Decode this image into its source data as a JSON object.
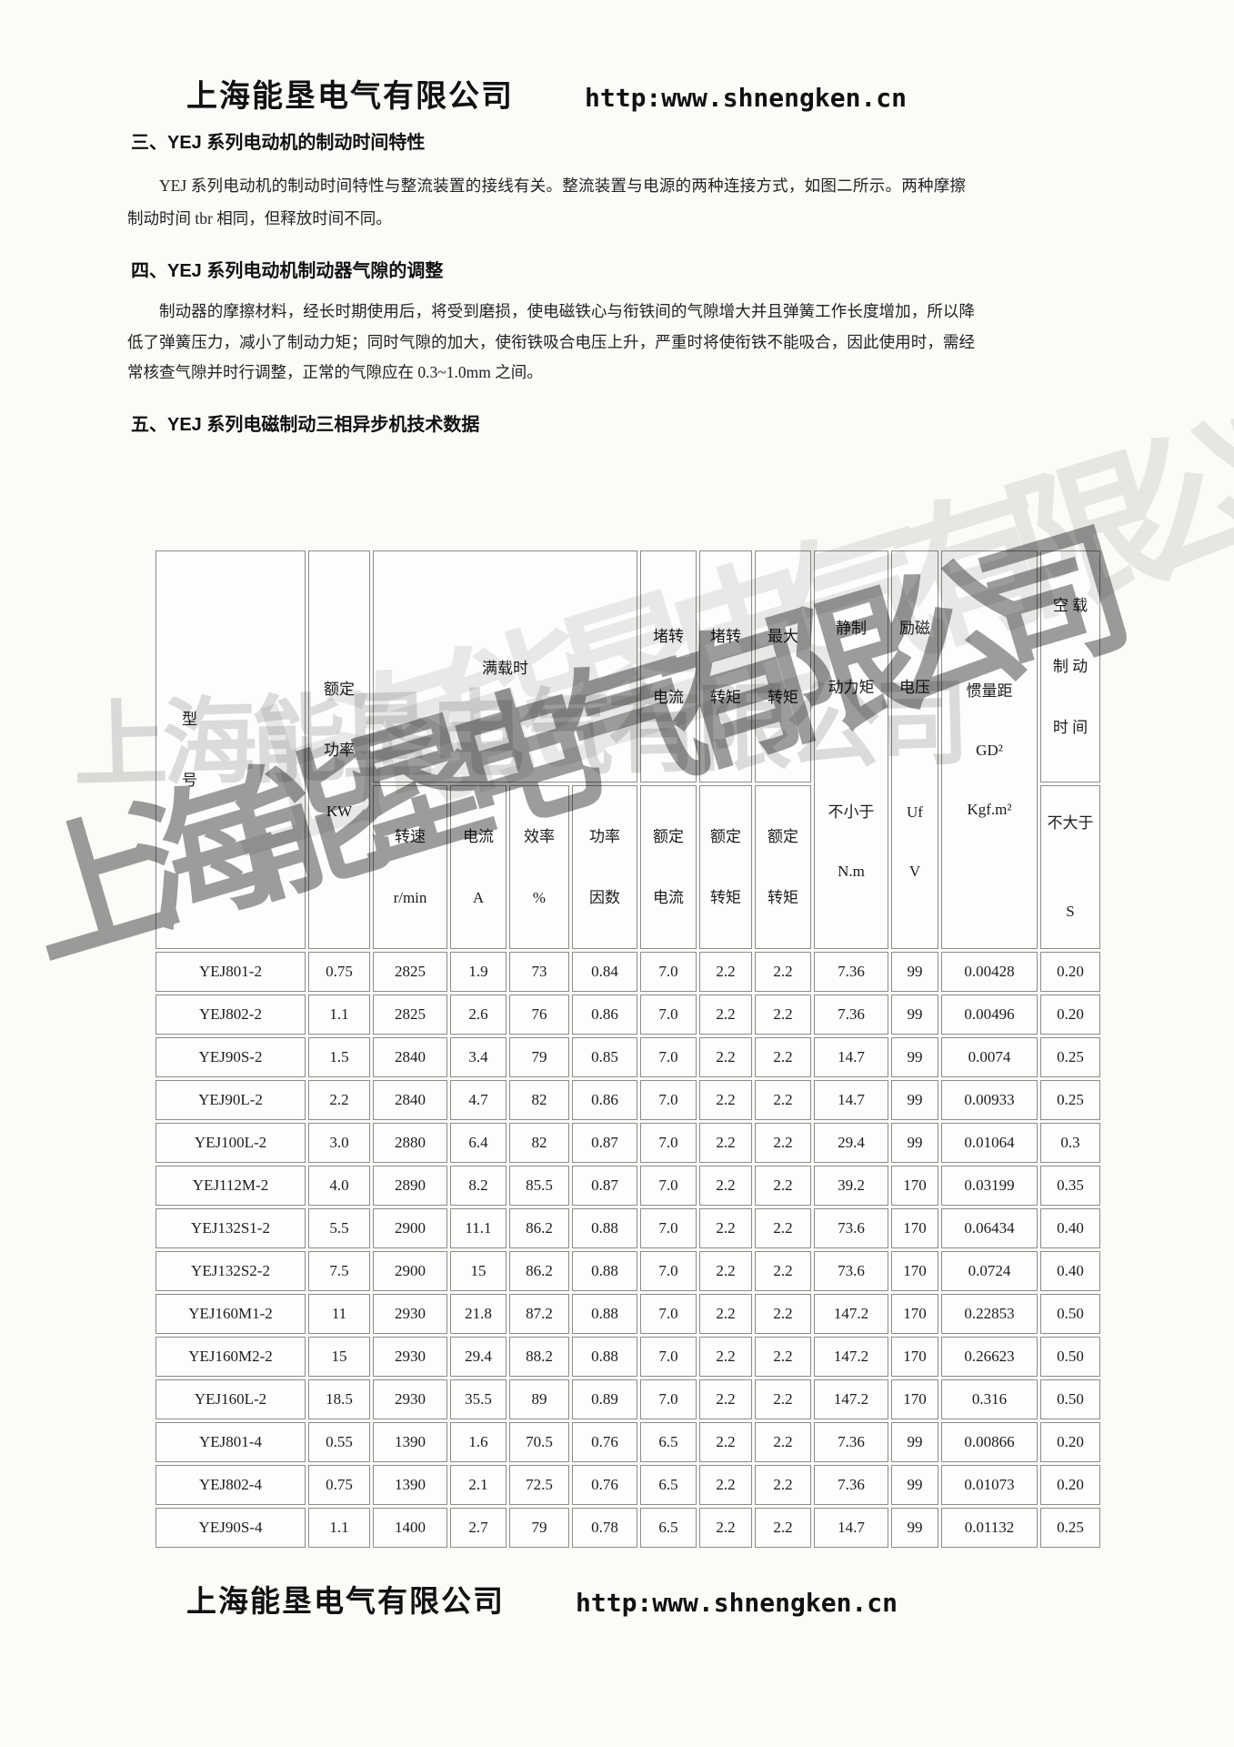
{
  "header": {
    "company": "上海能垦电气有限公司",
    "url": "http:www.shnengken.cn"
  },
  "footer": {
    "company": "上海能垦电气有限公司",
    "url": "http:www.shnengken.cn"
  },
  "watermark": {
    "text": "上海能垦电气有限公司"
  },
  "colors": {
    "text": "#1c1c1c",
    "table_border": "#8c8c8c",
    "watermark_gray": "#8f8f8f"
  },
  "sections": {
    "s3": {
      "heading": "三、YEJ 系列电动机的制动时间特性",
      "paragraph": "YEJ 系列电动机的制动时间特性与整流装置的接线有关。整流装置与电源的两种连接方式，如图二所示。两种摩擦制动时间 tbr 相同，但释放时间不同。"
    },
    "s4": {
      "heading": "四、YEJ 系列电动机制动器气隙的调整",
      "paragraph": "制动器的摩擦材料，经长时期使用后，将受到磨损，使电磁铁心与衔铁间的气隙增大并且弹簧工作长度增加，所以降低了弹簧压力，减小了制动力矩；同时气隙的加大，使衔铁吸合电压上升，严重时将使衔铁不能吸合，因此使用时，需经常核查气隙并时行调整，正常的气隙应在 0.3~1.0mm 之间。"
    },
    "s5": {
      "heading": "五、YEJ 系列电磁制动三相异步机技术数据"
    }
  },
  "table": {
    "header": {
      "model": [
        "型",
        "号"
      ],
      "rated_power": [
        "额定",
        "功率",
        "KW"
      ],
      "full_load_group": "满载时",
      "speed": [
        "转速",
        "r/min"
      ],
      "current": [
        "电流",
        "A"
      ],
      "efficiency": [
        "效率",
        "%"
      ],
      "power_factor": [
        "功率",
        "因数"
      ],
      "locked_rotor_current": {
        "top": [
          "堵转",
          "电流"
        ],
        "sub": [
          "额定",
          "电流"
        ]
      },
      "locked_rotor_torque": {
        "top": [
          "堵转",
          "转矩"
        ],
        "sub": [
          "额定",
          "转矩"
        ]
      },
      "max_torque": {
        "top": [
          "最大",
          "转矩"
        ],
        "sub": [
          "额定",
          "转矩"
        ]
      },
      "static_braking_torque": {
        "top": [
          "静制",
          "动力矩"
        ],
        "sub": [
          "不小于",
          "N.m"
        ]
      },
      "excitation_voltage": {
        "top": [
          "励磁",
          "电压"
        ],
        "sub": [
          "Uf",
          "V"
        ]
      },
      "inertia": [
        "惯量距",
        "GD²",
        "Kgf.m²"
      ],
      "no_load_braking_time": {
        "top": [
          "空 载",
          "制 动",
          "时 间"
        ],
        "sub": [
          "不大于",
          "S"
        ]
      }
    },
    "rows": [
      [
        "YEJ801-2",
        "0.75",
        "2825",
        "1.9",
        "73",
        "0.84",
        "7.0",
        "2.2",
        "2.2",
        "7.36",
        "99",
        "0.00428",
        "0.20"
      ],
      [
        "YEJ802-2",
        "1.1",
        "2825",
        "2.6",
        "76",
        "0.86",
        "7.0",
        "2.2",
        "2.2",
        "7.36",
        "99",
        "0.00496",
        "0.20"
      ],
      [
        "YEJ90S-2",
        "1.5",
        "2840",
        "3.4",
        "79",
        "0.85",
        "7.0",
        "2.2",
        "2.2",
        "14.7",
        "99",
        "0.0074",
        "0.25"
      ],
      [
        "YEJ90L-2",
        "2.2",
        "2840",
        "4.7",
        "82",
        "0.86",
        "7.0",
        "2.2",
        "2.2",
        "14.7",
        "99",
        "0.00933",
        "0.25"
      ],
      [
        "YEJ100L-2",
        "3.0",
        "2880",
        "6.4",
        "82",
        "0.87",
        "7.0",
        "2.2",
        "2.2",
        "29.4",
        "99",
        "0.01064",
        "0.3"
      ],
      [
        "YEJ112M-2",
        "4.0",
        "2890",
        "8.2",
        "85.5",
        "0.87",
        "7.0",
        "2.2",
        "2.2",
        "39.2",
        "170",
        "0.03199",
        "0.35"
      ],
      [
        "YEJ132S1-2",
        "5.5",
        "2900",
        "11.1",
        "86.2",
        "0.88",
        "7.0",
        "2.2",
        "2.2",
        "73.6",
        "170",
        "0.06434",
        "0.40"
      ],
      [
        "YEJ132S2-2",
        "7.5",
        "2900",
        "15",
        "86.2",
        "0.88",
        "7.0",
        "2.2",
        "2.2",
        "73.6",
        "170",
        "0.0724",
        "0.40"
      ],
      [
        "YEJ160M1-2",
        "11",
        "2930",
        "21.8",
        "87.2",
        "0.88",
        "7.0",
        "2.2",
        "2.2",
        "147.2",
        "170",
        "0.22853",
        "0.50"
      ],
      [
        "YEJ160M2-2",
        "15",
        "2930",
        "29.4",
        "88.2",
        "0.88",
        "7.0",
        "2.2",
        "2.2",
        "147.2",
        "170",
        "0.26623",
        "0.50"
      ],
      [
        "YEJ160L-2",
        "18.5",
        "2930",
        "35.5",
        "89",
        "0.89",
        "7.0",
        "2.2",
        "2.2",
        "147.2",
        "170",
        "0.316",
        "0.50"
      ],
      [
        "YEJ801-4",
        "0.55",
        "1390",
        "1.6",
        "70.5",
        "0.76",
        "6.5",
        "2.2",
        "2.2",
        "7.36",
        "99",
        "0.00866",
        "0.20"
      ],
      [
        "YEJ802-4",
        "0.75",
        "1390",
        "2.1",
        "72.5",
        "0.76",
        "6.5",
        "2.2",
        "2.2",
        "7.36",
        "99",
        "0.01073",
        "0.20"
      ],
      [
        "YEJ90S-4",
        "1.1",
        "1400",
        "2.7",
        "79",
        "0.78",
        "6.5",
        "2.2",
        "2.2",
        "14.7",
        "99",
        "0.01132",
        "0.25"
      ]
    ]
  }
}
